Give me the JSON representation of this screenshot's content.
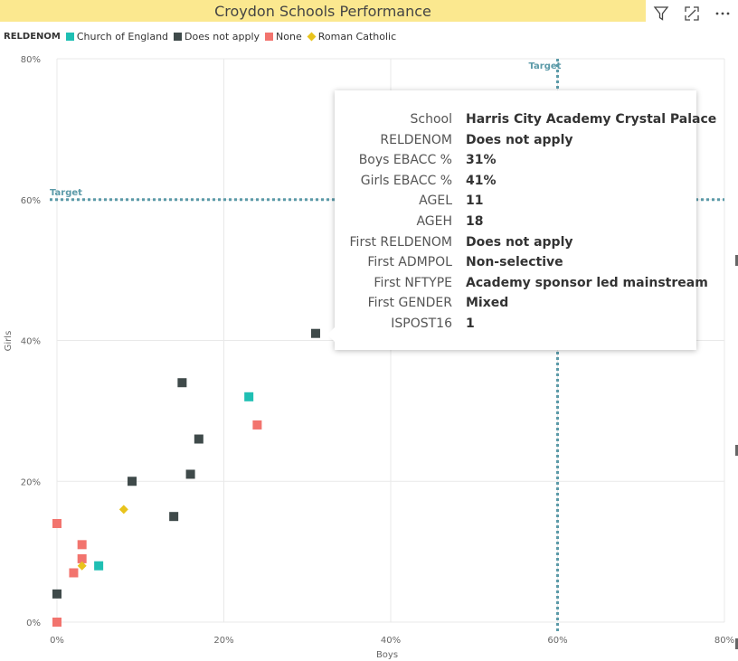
{
  "header": {
    "title": "Croydon Schools Performance"
  },
  "toolbar": {
    "filter_icon": "filter-icon",
    "focus_icon": "expand-icon",
    "more_icon": "more-options-icon"
  },
  "legend": {
    "title": "RELDENOM",
    "items": [
      {
        "label": "Church of England",
        "color": "#1fbfb3",
        "shape": "square"
      },
      {
        "label": "Does not apply",
        "color": "#3f4a4a",
        "shape": "square"
      },
      {
        "label": "None",
        "color": "#f2746e",
        "shape": "square"
      },
      {
        "label": "Roman Catholic",
        "color": "#e8c31c",
        "shape": "diamond"
      }
    ]
  },
  "chart_data": {
    "type": "scatter",
    "title": "Croydon Schools Performance",
    "xlabel": "Boys",
    "ylabel": "Girls",
    "xlim": [
      0,
      0.8
    ],
    "ylim": [
      0,
      0.8
    ],
    "x_ticks": [
      "0%",
      "20%",
      "40%",
      "60%",
      "80%"
    ],
    "y_ticks": [
      "0%",
      "20%",
      "40%",
      "60%",
      "80%"
    ],
    "grid": true,
    "legend_position": "top-left",
    "reference_lines": [
      {
        "axis": "x",
        "value": 0.6,
        "label": "Target",
        "color": "#5b9aa8"
      },
      {
        "axis": "y",
        "value": 0.6,
        "label": "Target",
        "color": "#5b9aa8"
      }
    ],
    "series": [
      {
        "name": "Church of England",
        "color": "#1fbfb3",
        "marker": "square",
        "x": [
          0.23,
          0.05
        ],
        "y": [
          0.32,
          0.08
        ]
      },
      {
        "name": "Does not apply",
        "color": "#3f4a4a",
        "marker": "square",
        "x": [
          0.31,
          0.15,
          0.17,
          0.16,
          0.09,
          0.14,
          0.0
        ],
        "y": [
          0.41,
          0.34,
          0.26,
          0.21,
          0.2,
          0.15,
          0.04
        ]
      },
      {
        "name": "None",
        "color": "#f2746e",
        "marker": "square",
        "x": [
          0.24,
          0.0,
          0.03,
          0.03,
          0.02,
          0.0
        ],
        "y": [
          0.28,
          0.14,
          0.11,
          0.09,
          0.07,
          0.0
        ]
      },
      {
        "name": "Roman Catholic",
        "color": "#e8c31c",
        "marker": "diamond",
        "x": [
          0.08,
          0.03
        ],
        "y": [
          0.16,
          0.08
        ]
      }
    ]
  },
  "tooltip": {
    "rows": [
      {
        "key": "School",
        "value": "Harris City Academy Crystal Palace"
      },
      {
        "key": "RELDENOM",
        "value": "Does not apply"
      },
      {
        "key": "Boys EBACC %",
        "value": "31%"
      },
      {
        "key": "Girls EBACC %",
        "value": "41%"
      },
      {
        "key": "AGEL",
        "value": "11"
      },
      {
        "key": "AGEH",
        "value": "18"
      },
      {
        "key": "First RELDENOM",
        "value": "Does not apply"
      },
      {
        "key": "First ADMPOL",
        "value": "Non-selective"
      },
      {
        "key": "First NFTYPE",
        "value": "Academy sponsor led mainstream"
      },
      {
        "key": "First GENDER",
        "value": "Mixed"
      },
      {
        "key": "ISPOST16",
        "value": "1"
      }
    ]
  }
}
